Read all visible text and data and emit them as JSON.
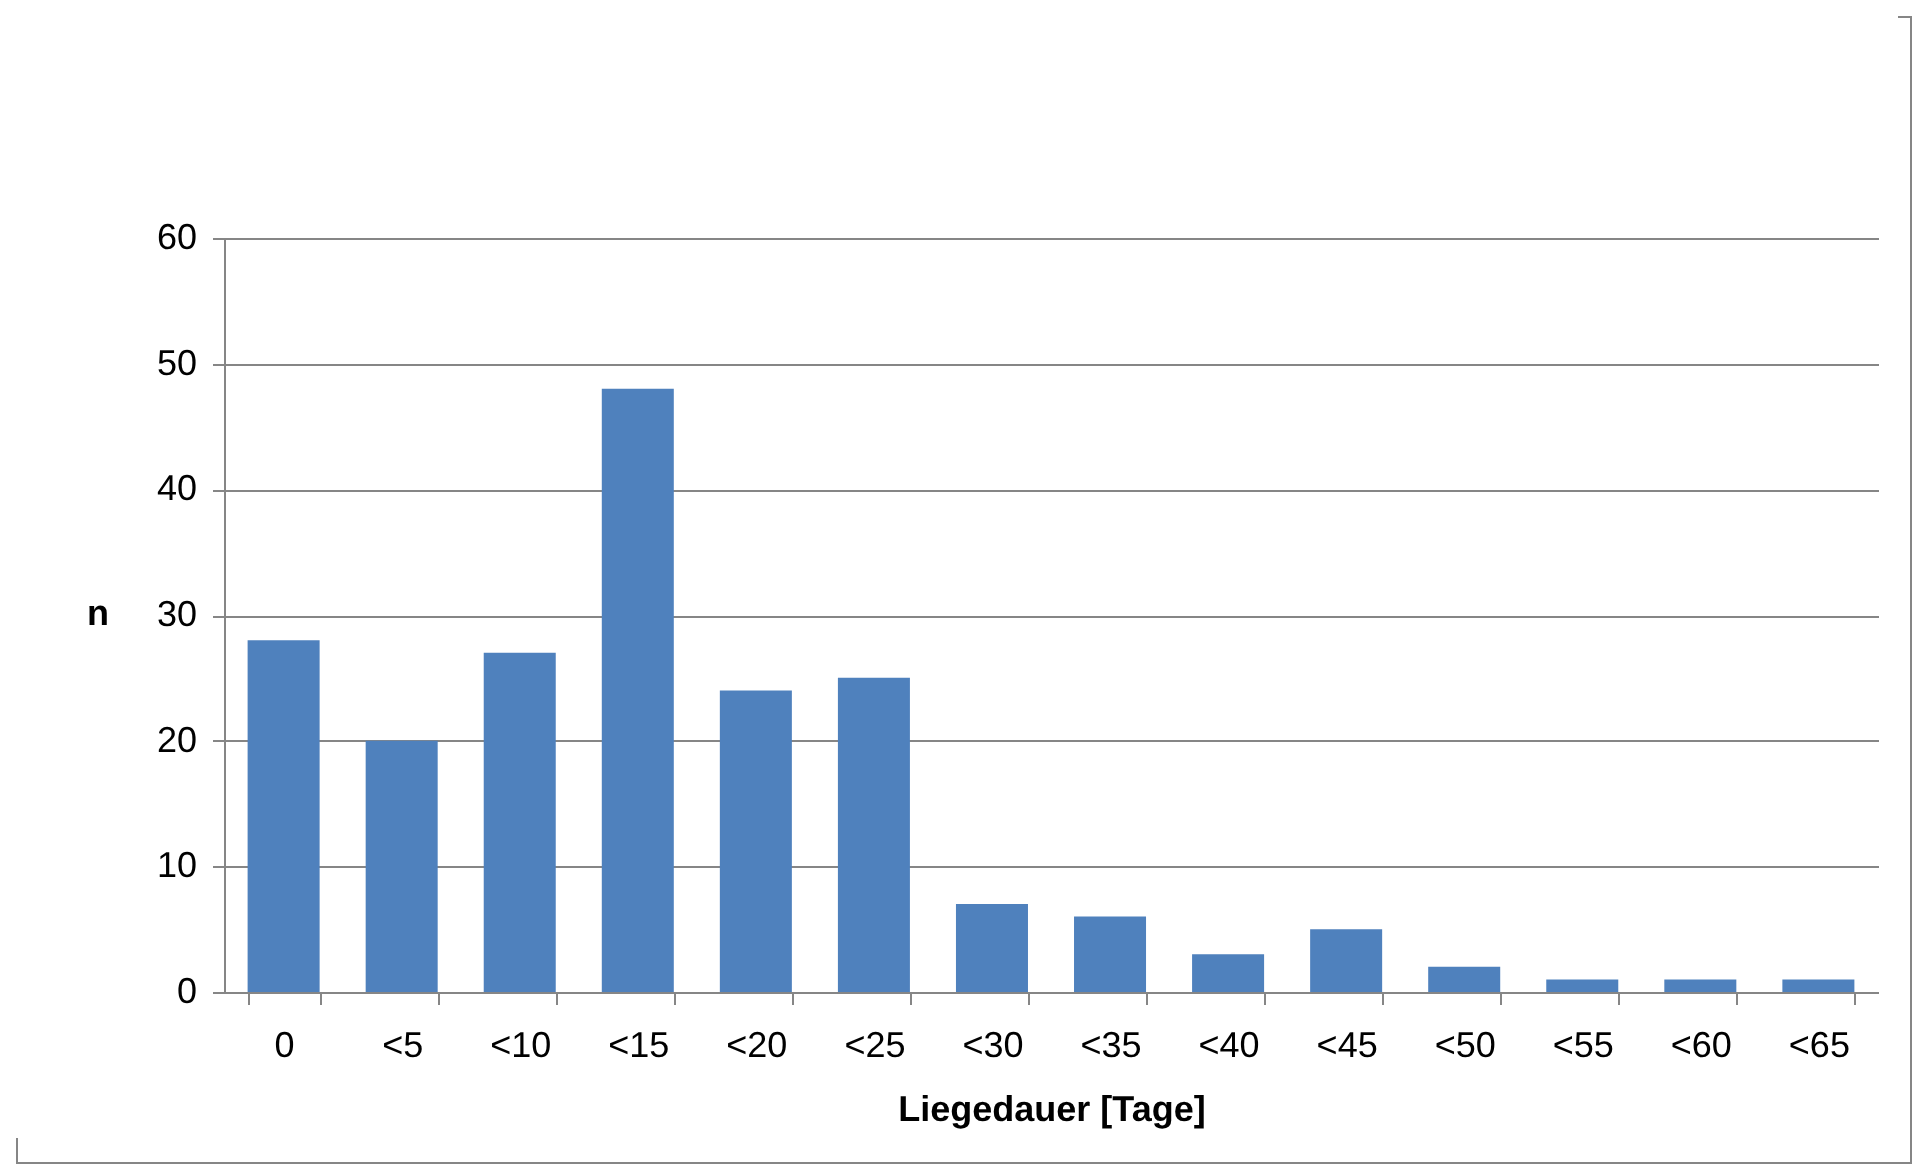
{
  "chart_data": {
    "type": "bar",
    "xlabel": "Liegedauer  [Tage]",
    "ylabel": "n",
    "categories": [
      "0",
      "<5",
      "<10",
      "<15",
      "<20",
      "<25",
      "<30",
      "<35",
      "<40",
      "<45",
      "<50",
      "<55",
      "<60",
      "<65"
    ],
    "values": [
      28,
      20,
      27,
      48,
      24,
      25,
      7,
      6,
      3,
      5,
      2,
      1,
      1,
      1
    ],
    "color": "#4f81bd",
    "ylim": [
      0,
      60
    ],
    "yticks": [
      0,
      10,
      20,
      30,
      40,
      50,
      60
    ],
    "grid": "y"
  }
}
